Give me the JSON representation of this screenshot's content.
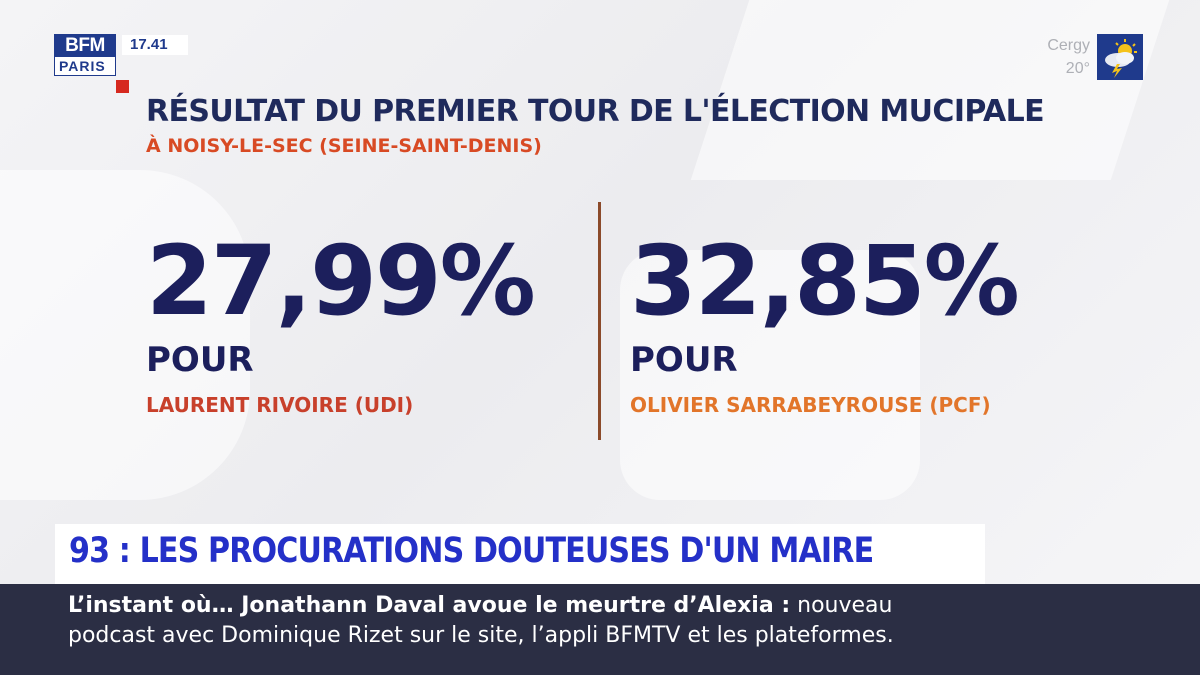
{
  "logo": {
    "top": "BFM",
    "bottom": "PARIS"
  },
  "clock": "17.41",
  "weather": {
    "city": "Cergy",
    "temp": "20°",
    "icon": "sun-cloud-storm-icon"
  },
  "title": "RÉSULTAT DU PREMIER TOUR DE L'ÉLECTION MUCIPALE",
  "subtitle": "À NOISY-LE-SEC (SEINE-SAINT-DENIS)",
  "results": [
    {
      "pct": "27,99%",
      "pour": "POUR",
      "candidate": "LAURENT RIVOIRE (UDI)",
      "color": "#c8402b"
    },
    {
      "pct": "32,85%",
      "pour": "POUR",
      "candidate": "OLIVIER SARRABEYROUSE (PCF)",
      "color": "#e2752a"
    }
  ],
  "headline": "93 : LES PROCURATIONS DOUTEUSES D'UN MAIRE",
  "ticker": {
    "bold": "L’instant où… Jonathann Daval avoue le meurtre d’Alexia  :",
    "rest": " nouveau",
    "line2": "podcast avec Dominique Rizet sur le site, l’appli BFMTV et les plateformes."
  },
  "colors": {
    "navy": "#1c1f5c",
    "brand_blue": "#1f3a8c",
    "headline_blue": "#2430c8",
    "ticker_bg": "#2b2e44"
  }
}
